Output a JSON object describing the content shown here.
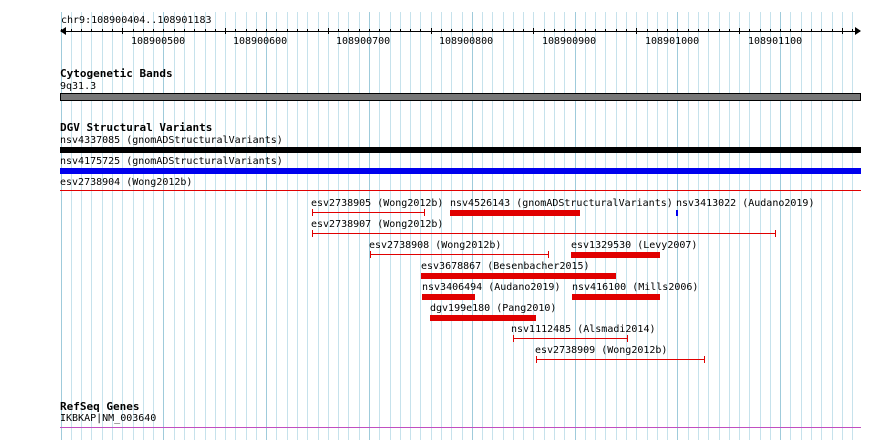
{
  "ruler": {
    "locus": "chr9:108900404..108901183",
    "ticks": [
      "108900500",
      "108900600",
      "108900700",
      "108900800",
      "108900900",
      "108901000",
      "108901100"
    ]
  },
  "tracks": {
    "cytobands": {
      "title": "Cytogenetic Bands",
      "band_label": "9q31.3",
      "band_color": "#777777"
    },
    "dgv": {
      "title": "DGV Structural Variants",
      "full_features": [
        {
          "label": "nsv4337085 (gnomADStructuralVariants)",
          "color": "#000000"
        },
        {
          "label": "nsv4175725 (gnomADStructuralVariants)",
          "color": "#0000ee"
        },
        {
          "label": "esv2738904 (Wong2012b)",
          "color": "#e00000"
        }
      ],
      "features": [
        {
          "label": "esv2738905 (Wong2012b)",
          "style": "line"
        },
        {
          "label": "nsv4526143 (gnomADStructuralVariants)",
          "style": "bar"
        },
        {
          "label": "nsv3413022 (Audano2019)",
          "style": "bar"
        },
        {
          "label": "esv2738907 (Wong2012b)",
          "style": "line"
        },
        {
          "label": "esv2738908 (Wong2012b)",
          "style": "line"
        },
        {
          "label": "esv1329530 (Levy2007)",
          "style": "bar"
        },
        {
          "label": "esv3678867 (Besenbacher2015)",
          "style": "bar"
        },
        {
          "label": "nsv3406494 (Audano2019)",
          "style": "bar"
        },
        {
          "label": "nsv416100 (Mills2006)",
          "style": "bar"
        },
        {
          "label": "dgv199e180 (Pang2010)",
          "style": "bar"
        },
        {
          "label": "nsv1112485 (Alsmadi2014)",
          "style": "line"
        },
        {
          "label": "esv2738909 (Wong2012b)",
          "style": "line"
        }
      ]
    },
    "refseq": {
      "title": "RefSeq Genes",
      "gene_label": "IKBKAP|NM_003640",
      "gene_color": "#c14fc1"
    }
  }
}
